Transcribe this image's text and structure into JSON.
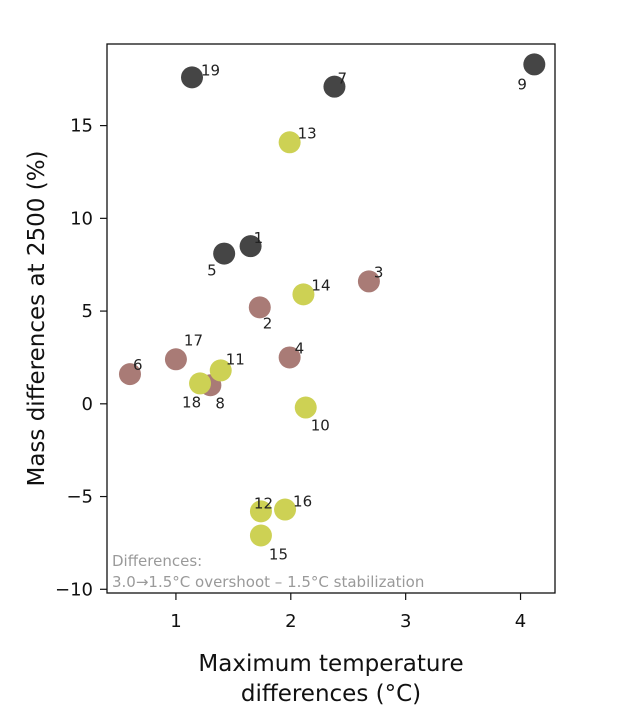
{
  "chart_data": {
    "type": "scatter",
    "xlabel_lines": [
      "Maximum temperature",
      "differences (°C)"
    ],
    "ylabel": "Mass differences at 2500 (%)",
    "xlim": [
      0.4,
      4.3
    ],
    "ylim": [
      -10.2,
      19.4
    ],
    "x_ticks": [
      1,
      2,
      3,
      4
    ],
    "y_ticks": [
      -10,
      -5,
      0,
      5,
      10,
      15
    ],
    "x_tick_labels": [
      "1",
      "2",
      "3",
      "4"
    ],
    "y_tick_labels": [
      "−10",
      "−5",
      "0",
      "5",
      "10",
      "15"
    ],
    "grid": false,
    "annotation_lines": [
      "Differences:",
      "3.0→1.5°C overshoot – 1.5°C stabilization"
    ],
    "colors": {
      "dark": "#454545",
      "rose": "#a97b76",
      "olive": "#cdd154"
    },
    "points": [
      {
        "label": "1",
        "x": 1.65,
        "y": 8.5,
        "group": "dark"
      },
      {
        "label": "2",
        "x": 1.73,
        "y": 5.2,
        "group": "rose"
      },
      {
        "label": "3",
        "x": 2.68,
        "y": 6.6,
        "group": "rose"
      },
      {
        "label": "4",
        "x": 1.99,
        "y": 2.5,
        "group": "rose"
      },
      {
        "label": "5",
        "x": 1.42,
        "y": 8.1,
        "group": "dark"
      },
      {
        "label": "6",
        "x": 0.6,
        "y": 1.6,
        "group": "rose"
      },
      {
        "label": "7",
        "x": 2.38,
        "y": 17.1,
        "group": "dark"
      },
      {
        "label": "8",
        "x": 1.3,
        "y": 1.0,
        "group": "rose"
      },
      {
        "label": "9",
        "x": 4.12,
        "y": 18.3,
        "group": "dark"
      },
      {
        "label": "10",
        "x": 2.13,
        "y": -0.2,
        "group": "olive"
      },
      {
        "label": "11",
        "x": 1.39,
        "y": 1.8,
        "group": "olive"
      },
      {
        "label": "12",
        "x": 1.74,
        "y": -5.8,
        "group": "olive"
      },
      {
        "label": "13",
        "x": 1.99,
        "y": 14.1,
        "group": "olive"
      },
      {
        "label": "14",
        "x": 2.11,
        "y": 5.9,
        "group": "olive"
      },
      {
        "label": "15",
        "x": 1.74,
        "y": -7.1,
        "group": "olive"
      },
      {
        "label": "16",
        "x": 1.95,
        "y": -5.7,
        "group": "olive"
      },
      {
        "label": "17",
        "x": 1.0,
        "y": 2.4,
        "group": "rose"
      },
      {
        "label": "18",
        "x": 1.21,
        "y": 1.1,
        "group": "olive"
      },
      {
        "label": "19",
        "x": 1.14,
        "y": 17.6,
        "group": "dark"
      }
    ]
  }
}
